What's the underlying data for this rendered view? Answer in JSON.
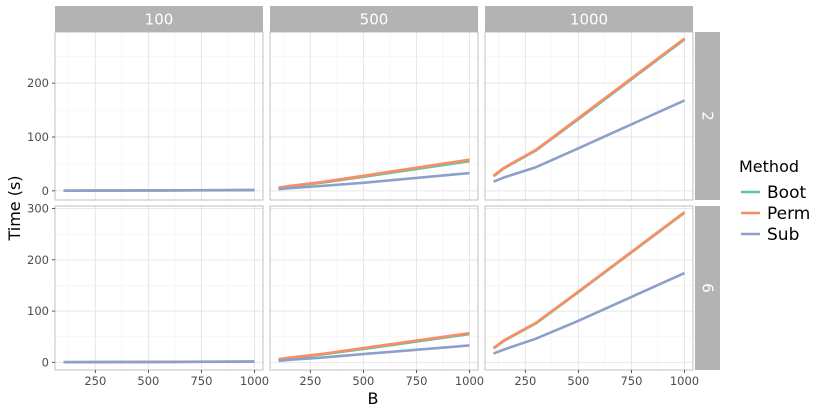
{
  "chart_data": {
    "type": "line",
    "title": "",
    "xlabel": "B",
    "ylabel": "Time (s)",
    "xlim": [
      60,
      1040
    ],
    "x_ticks": [
      250,
      500,
      750,
      1000
    ],
    "x_tick_labels": [
      "250",
      "500",
      "750",
      "1000"
    ],
    "col_facets": [
      "100",
      "500",
      "1000"
    ],
    "row_facets": [
      "2",
      "6"
    ],
    "row_axes": [
      {
        "ylim": [
          -17,
          295
        ],
        "ticks": [
          0,
          100,
          200
        ],
        "tick_labels": [
          "0",
          "100",
          "200"
        ]
      },
      {
        "ylim": [
          -15,
          305
        ],
        "ticks": [
          0,
          100,
          200,
          300
        ],
        "tick_labels": [
          "0",
          "100",
          "200",
          "300"
        ]
      }
    ],
    "grid": true,
    "legend_position": "right",
    "legend": {
      "title": "Method",
      "entries": [
        {
          "name": "Boot",
          "color": "#66c2a5"
        },
        {
          "name": "Perm",
          "color": "#fc8d62"
        },
        {
          "name": "Sub",
          "color": "#8da0cb"
        }
      ]
    },
    "x": [
      100,
      150,
      300,
      500,
      1000
    ],
    "panels": [
      {
        "row": "2",
        "col": "100",
        "series": [
          {
            "name": "Boot",
            "values": [
              0.2,
              0.3,
              0.5,
              0.8,
              1.6
            ]
          },
          {
            "name": "Perm",
            "values": [
              0.2,
              0.3,
              0.5,
              0.8,
              1.6
            ]
          },
          {
            "name": "Sub",
            "values": [
              0.2,
              0.3,
              0.4,
              0.6,
              1.2
            ]
          }
        ]
      },
      {
        "row": "2",
        "col": "500",
        "series": [
          {
            "name": "Boot",
            "values": [
              5,
              8,
              15,
              26,
              55
            ]
          },
          {
            "name": "Perm",
            "values": [
              6,
              9,
              16,
              28,
              58
            ]
          },
          {
            "name": "Sub",
            "values": [
              3,
              5,
              9,
              15,
              33
            ]
          }
        ]
      },
      {
        "row": "2",
        "col": "1000",
        "series": [
          {
            "name": "Boot",
            "values": [
              27,
              42,
              75,
              133,
              281
            ]
          },
          {
            "name": "Perm",
            "values": [
              28,
              43,
              76,
              135,
              283
            ]
          },
          {
            "name": "Sub",
            "values": [
              17,
              25,
              44,
              79,
              168
            ]
          }
        ]
      },
      {
        "row": "6",
        "col": "100",
        "series": [
          {
            "name": "Boot",
            "values": [
              0.2,
              0.3,
              0.5,
              0.8,
              1.6
            ]
          },
          {
            "name": "Perm",
            "values": [
              0.2,
              0.3,
              0.5,
              0.8,
              1.6
            ]
          },
          {
            "name": "Sub",
            "values": [
              0.2,
              0.3,
              0.4,
              0.6,
              1.2
            ]
          }
        ]
      },
      {
        "row": "6",
        "col": "500",
        "series": [
          {
            "name": "Boot",
            "values": [
              5,
              8,
              15,
              26,
              55
            ]
          },
          {
            "name": "Perm",
            "values": [
              6,
              9,
              16,
              28,
              57
            ]
          },
          {
            "name": "Sub",
            "values": [
              3,
              5,
              9,
              16,
              33
            ]
          }
        ]
      },
      {
        "row": "6",
        "col": "1000",
        "series": [
          {
            "name": "Boot",
            "values": [
              27,
              42,
              76,
              137,
              292
            ]
          },
          {
            "name": "Perm",
            "values": [
              28,
              43,
              77,
              138,
              293
            ]
          },
          {
            "name": "Sub",
            "values": [
              17,
              25,
              46,
              81,
              174
            ]
          }
        ]
      }
    ]
  }
}
